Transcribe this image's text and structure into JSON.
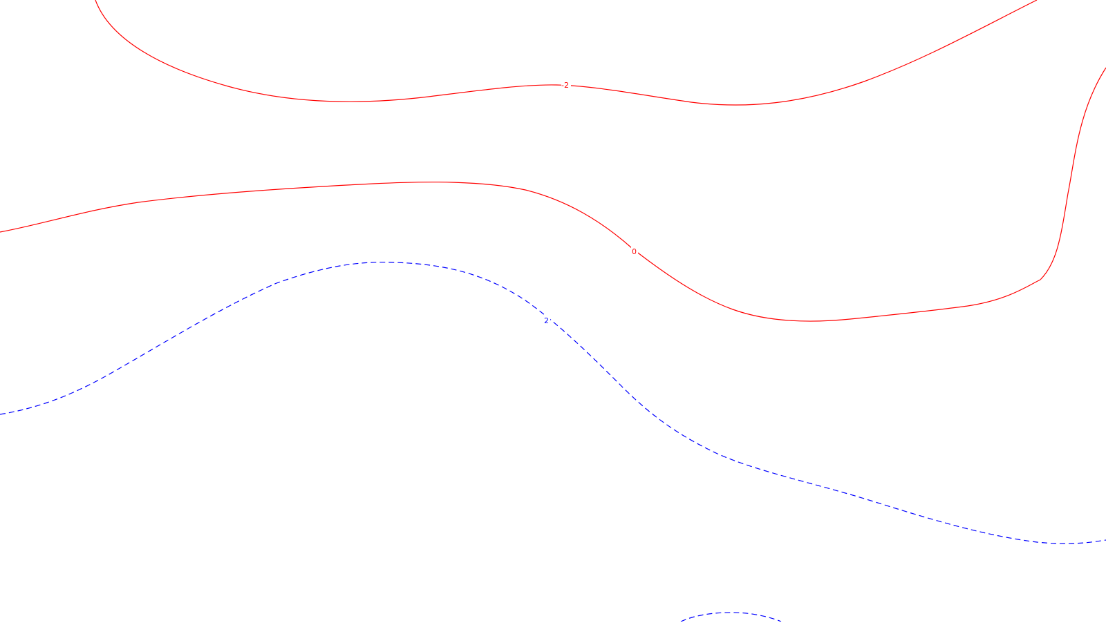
{
  "map": {
    "background": "#ffffff",
    "contours": [
      {
        "id": "contour-minus-2",
        "value": -2,
        "label": "-2",
        "color": "#ff0000",
        "line_style": "solid"
      },
      {
        "id": "contour-0",
        "value": 0,
        "label": "0",
        "color": "#ff0000",
        "line_style": "solid"
      },
      {
        "id": "contour-2",
        "value": 2,
        "label": "2",
        "color": "#0000ff",
        "line_style": "dashed"
      },
      {
        "id": "contour-2-bottom",
        "value": 2,
        "label": "",
        "color": "#0000ff",
        "line_style": "dashed"
      }
    ]
  }
}
